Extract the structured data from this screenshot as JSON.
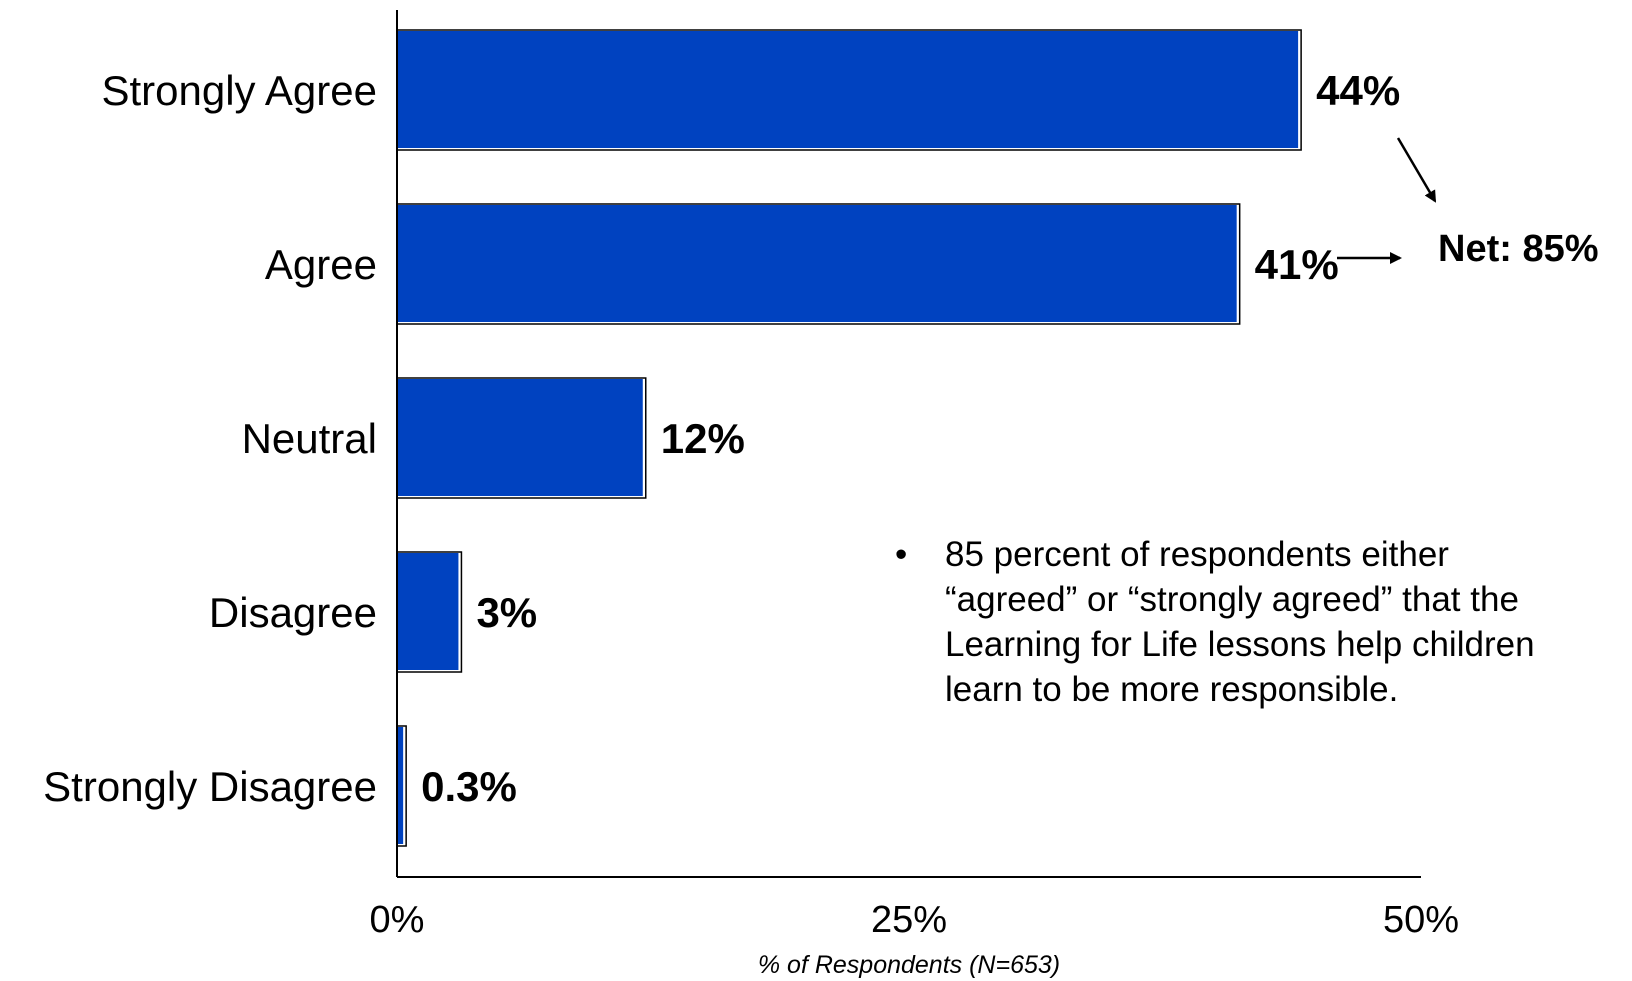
{
  "chart_data": {
    "type": "bar",
    "orientation": "horizontal",
    "categories": [
      "Strongly Agree",
      "Agree",
      "Neutral",
      "Disagree",
      "Strongly Disagree"
    ],
    "values": [
      44,
      41,
      12,
      3,
      0.3
    ],
    "value_labels": [
      "44%",
      "41%",
      "12%",
      "3%",
      "0.3%"
    ],
    "xlabel": "% of Respondents (N=653)",
    "xlim": [
      0,
      50
    ],
    "xticks": [
      0,
      25,
      50
    ],
    "xtick_labels": [
      "0%",
      "25%",
      "50%"
    ],
    "grid": false,
    "bar_color": "#0042C0",
    "annotations": {
      "net_label": "Net: 85%"
    }
  },
  "note": {
    "bullet": "•",
    "text": "85 percent of respondents either “agreed” or “strongly agreed” that the Learning for Life lessons help children learn to be more responsible."
  }
}
